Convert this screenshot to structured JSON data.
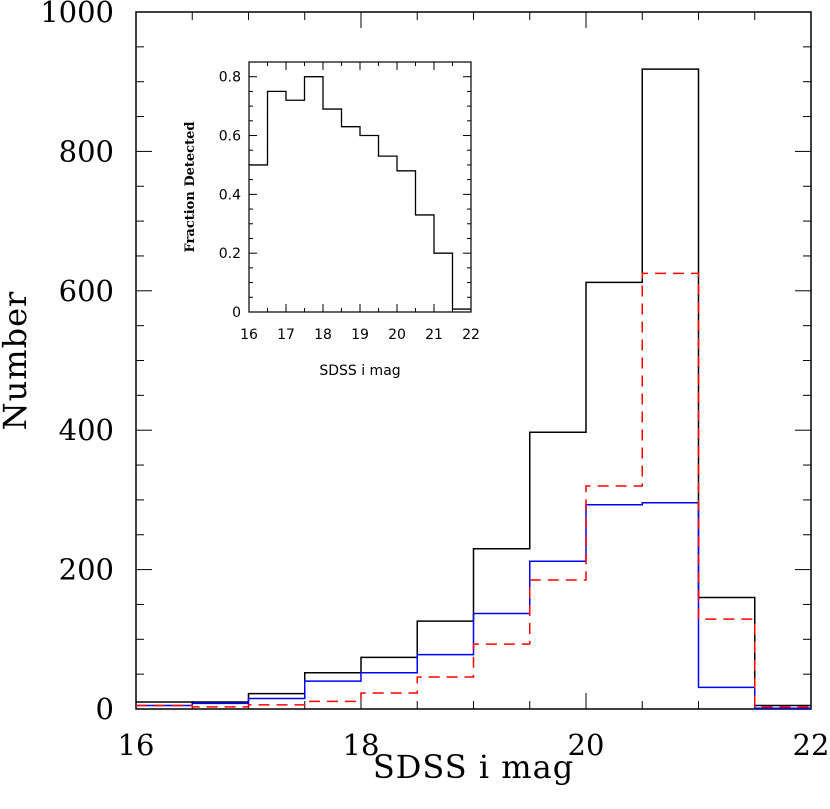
{
  "chart_data": [
    {
      "type": "step-histogram",
      "xlabel": "SDSS i mag",
      "ylabel": "Number",
      "xlim": [
        16,
        22
      ],
      "ylim": [
        0,
        1000
      ],
      "xticks": [
        16,
        18,
        20,
        22
      ],
      "yticks": [
        0,
        200,
        400,
        600,
        800,
        1000
      ],
      "bin_edges": [
        16,
        16.5,
        17,
        17.5,
        18,
        18.5,
        19,
        19.5,
        20,
        20.5,
        21,
        21.5,
        22
      ],
      "series": [
        {
          "color": "#000000",
          "dash": "solid",
          "values": [
            10,
            10,
            22,
            52,
            74,
            126,
            230,
            397,
            612,
            918,
            160,
            5
          ]
        },
        {
          "color": "#0000ff",
          "dash": "solid",
          "values": [
            5,
            8,
            15,
            40,
            52,
            78,
            137,
            212,
            293,
            296,
            31,
            1
          ]
        },
        {
          "color": "#ff0000",
          "dash": "dashed",
          "values": [
            5,
            3,
            6,
            11,
            23,
            46,
            93,
            185,
            320,
            625,
            129,
            3
          ]
        }
      ]
    },
    {
      "type": "step-histogram",
      "xlabel": "SDSS i mag",
      "ylabel": "Fraction Detected",
      "xlim": [
        16,
        22
      ],
      "ylim": [
        0,
        0.85
      ],
      "xticks": [
        16,
        17,
        18,
        19,
        20,
        21,
        22
      ],
      "yticks": [
        0,
        0.2,
        0.4,
        0.6,
        0.8
      ],
      "ytick_labels": [
        "0",
        "0.2",
        "0.4",
        "0.6",
        "0.8"
      ],
      "bin_edges": [
        16,
        16.5,
        17,
        17.5,
        18,
        18.5,
        19,
        19.5,
        20,
        20.5,
        21,
        21.5,
        22
      ],
      "series": [
        {
          "color": "#000000",
          "dash": "solid",
          "values": [
            0.5,
            0.75,
            0.72,
            0.8,
            0.69,
            0.63,
            0.6,
            0.53,
            0.48,
            0.33,
            0.2,
            0.01
          ]
        }
      ]
    }
  ]
}
